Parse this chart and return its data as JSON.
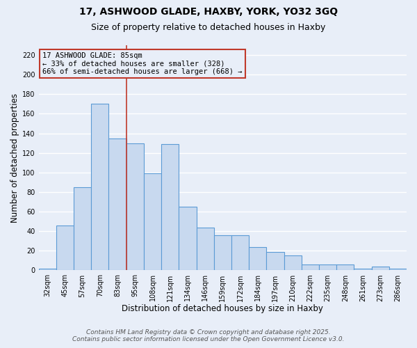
{
  "title_line1": "17, ASHWOOD GLADE, HAXBY, YORK, YO32 3GQ",
  "title_line2": "Size of property relative to detached houses in Haxby",
  "xlabel": "Distribution of detached houses by size in Haxby",
  "ylabel": "Number of detached properties",
  "categories": [
    "32sqm",
    "45sqm",
    "57sqm",
    "70sqm",
    "83sqm",
    "95sqm",
    "108sqm",
    "121sqm",
    "134sqm",
    "146sqm",
    "159sqm",
    "172sqm",
    "184sqm",
    "197sqm",
    "210sqm",
    "222sqm",
    "235sqm",
    "248sqm",
    "261sqm",
    "273sqm",
    "286sqm"
  ],
  "values": [
    2,
    46,
    85,
    170,
    135,
    130,
    99,
    129,
    65,
    44,
    36,
    36,
    24,
    19,
    15,
    6,
    6,
    6,
    2,
    4,
    2
  ],
  "bar_color": "#c8d9ef",
  "bar_edge_color": "#5b9bd5",
  "background_color": "#e8eef8",
  "grid_color": "#ffffff",
  "vline_color": "#c0392b",
  "vline_index": 4.5,
  "annotation_text": "17 ASHWOOD GLADE: 85sqm\n← 33% of detached houses are smaller (328)\n66% of semi-detached houses are larger (668) →",
  "annotation_box_color": "#c0392b",
  "ylim": [
    0,
    230
  ],
  "yticks": [
    0,
    20,
    40,
    60,
    80,
    100,
    120,
    140,
    160,
    180,
    200,
    220
  ],
  "footnote_line1": "Contains HM Land Registry data © Crown copyright and database right 2025.",
  "footnote_line2": "Contains public sector information licensed under the Open Government Licence v3.0.",
  "title_fontsize": 10,
  "subtitle_fontsize": 9,
  "xlabel_fontsize": 8.5,
  "ylabel_fontsize": 8.5,
  "tick_fontsize": 7,
  "annotation_fontsize": 7.5,
  "footnote_fontsize": 6.5
}
